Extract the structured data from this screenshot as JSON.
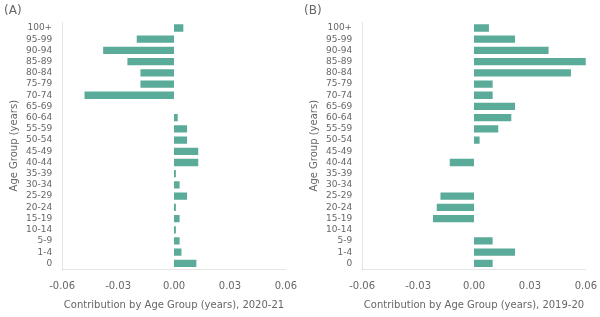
{
  "chart_data": [
    {
      "type": "bar",
      "orientation": "horizontal",
      "title": "(A)",
      "categories": [
        "100+",
        "95-99",
        "90-94",
        "85-89",
        "80-84",
        "75-79",
        "70-74",
        "65-69",
        "60-64",
        "55-59",
        "50-54",
        "45-49",
        "40-44",
        "35-39",
        "30-34",
        "25-29",
        "20-24",
        "15-19",
        "10-14",
        "5-9",
        "1-4",
        "0"
      ],
      "values": [
        0.005,
        -0.02,
        -0.038,
        -0.025,
        -0.018,
        -0.018,
        -0.048,
        0.0,
        0.002,
        0.007,
        0.007,
        0.013,
        0.013,
        0.001,
        0.003,
        0.007,
        0.001,
        0.003,
        0.001,
        0.003,
        0.004,
        0.012
      ],
      "color": "#5aab99",
      "xlabel": "Contribution by Age Group (years), 2020-21",
      "ylabel": "Age Group (years)",
      "xlim": [
        -0.06,
        0.06
      ],
      "xticks": [
        -0.06,
        -0.03,
        {
          "value": 0,
          "label": "0.00"
        },
        0.03,
        0.06
      ],
      "grid": false
    },
    {
      "type": "bar",
      "orientation": "horizontal",
      "title": "(B)",
      "categories": [
        "100+",
        "95-99",
        "90-94",
        "85-89",
        "80-84",
        "75-79",
        "70-74",
        "65-69",
        "60-64",
        "55-59",
        "50-54",
        "45-49",
        "40-44",
        "35-39",
        "30-34",
        "25-29",
        "20-24",
        "15-19",
        "10-14",
        "5-9",
        "1-4",
        "0"
      ],
      "values": [
        0.008,
        0.022,
        0.04,
        0.06,
        0.052,
        0.01,
        0.01,
        0.022,
        0.02,
        0.013,
        0.003,
        0.0,
        -0.013,
        0.0,
        0.0,
        -0.018,
        -0.02,
        -0.022,
        0.0,
        0.01,
        0.022,
        0.01
      ],
      "color": "#5aab99",
      "xlabel": "Contribution by Age Group (years), 2019-20",
      "ylabel": "Age Group (years)",
      "xlim": [
        -0.06,
        0.06
      ],
      "xticks": [
        -0.06,
        -0.03,
        {
          "value": 0,
          "label": "0.00"
        },
        0.03,
        0.06
      ],
      "grid": false
    }
  ]
}
